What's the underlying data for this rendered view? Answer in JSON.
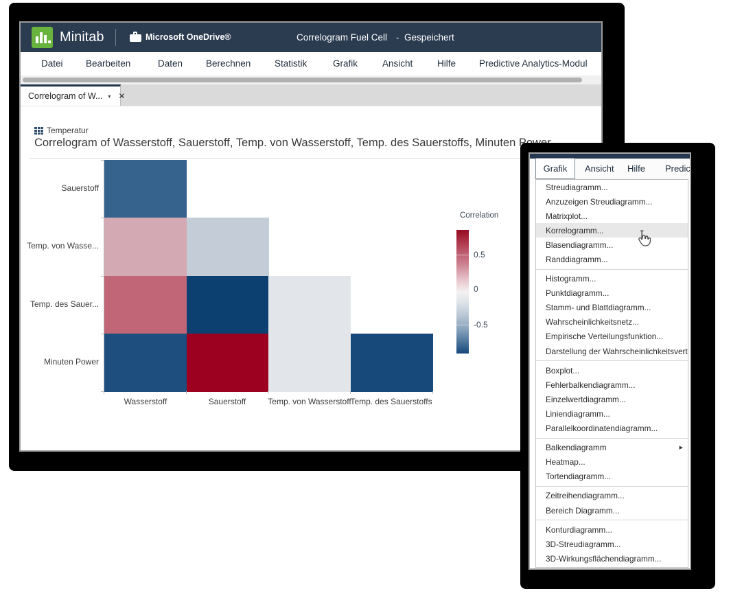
{
  "header": {
    "brand": "Minitab",
    "storage_label": "Microsoft OneDrive®",
    "doc_title": "Correlogram Fuel Cell",
    "doc_separator": "-",
    "doc_status": "Gespeichert"
  },
  "menubar": {
    "items": [
      "Datei",
      "Bearbeiten",
      "Daten",
      "Berechnen",
      "Statistik",
      "Grafik",
      "Ansicht",
      "Hilfe",
      "Predictive Analytics-Modul"
    ]
  },
  "tab": {
    "label": "Correlogram of W...",
    "caret": "▾",
    "close": "✕"
  },
  "worksheet": {
    "name": "Temperatur"
  },
  "page_title": "Correlogram of Wasserstoff, Sauerstoff, Temp. von Wasserstoff, Temp. des Sauerstoffs, Minuten Power",
  "chart_data": {
    "type": "heatmap",
    "title": "Correlogram of Wasserstoff, Sauerstoff, Temp. von Wasserstoff, Temp. des Sauerstoffs, Minuten Power",
    "x_categories": [
      "Wasserstoff",
      "Sauerstoff",
      "Temp. von Wasserstoff",
      "Temp. des Sauerstoffs"
    ],
    "y_categories": [
      "Sauerstoff",
      "Temp. von Wasse...",
      "Temp. des Sauer...",
      "Minuten Power"
    ],
    "legend": {
      "title": "Correlation",
      "ticks": [
        "0.5",
        "0",
        "-0.5"
      ],
      "top_color": "#970a20",
      "mid_color": "#f4f1f2",
      "bottom_color": "#16477a"
    },
    "cells": [
      {
        "row": 0,
        "col": 0,
        "y": "Sauerstoff",
        "x": "Wasserstoff",
        "value": -0.6,
        "color": "#35638d"
      },
      {
        "row": 1,
        "col": 0,
        "y": "Temp. von Wasse...",
        "x": "Wasserstoff",
        "value": 0.3,
        "color": "#d3a9b4"
      },
      {
        "row": 1,
        "col": 1,
        "y": "Temp. von Wasse...",
        "x": "Sauerstoff",
        "value": -0.2,
        "color": "#c4cdd7"
      },
      {
        "row": 2,
        "col": 0,
        "y": "Temp. des Sauer...",
        "x": "Wasserstoff",
        "value": 0.55,
        "color": "#c06677"
      },
      {
        "row": 2,
        "col": 1,
        "y": "Temp. des Sauer...",
        "x": "Sauerstoff",
        "value": -0.9,
        "color": "#0c4070"
      },
      {
        "row": 2,
        "col": 2,
        "y": "Temp. des Sauer...",
        "x": "Temp. von Wasserstoff",
        "value": -0.05,
        "color": "#e2e6ea"
      },
      {
        "row": 3,
        "col": 0,
        "y": "Minuten Power",
        "x": "Wasserstoff",
        "value": -0.75,
        "color": "#1d4e7d"
      },
      {
        "row": 3,
        "col": 1,
        "y": "Minuten Power",
        "x": "Sauerstoff",
        "value": 0.95,
        "color": "#9c0120"
      },
      {
        "row": 3,
        "col": 2,
        "y": "Minuten Power",
        "x": "Temp. von Wasserstoff",
        "value": -0.05,
        "color": "#e2e6ea"
      },
      {
        "row": 3,
        "col": 3,
        "y": "Minuten Power",
        "x": "Temp. des Sauerstoffs",
        "value": -0.8,
        "color": "#174a7b"
      }
    ]
  },
  "overlay_menu": {
    "menubar_items": [
      "Grafik",
      "Ansicht",
      "Hilfe",
      "Predictiv"
    ],
    "active_menu": "Grafik",
    "groups": [
      [
        {
          "label": "Streudiagramm..."
        },
        {
          "label": "Anzuzeigen Streudiagramm..."
        },
        {
          "label": "Matrixplot..."
        },
        {
          "label": "Korrelogramm...",
          "highlighted": true
        },
        {
          "label": "Blasendiagramm..."
        },
        {
          "label": "Randdiagramm..."
        }
      ],
      [
        {
          "label": "Histogramm..."
        },
        {
          "label": "Punktdiagramm..."
        },
        {
          "label": "Stamm- und Blattdiagramm..."
        },
        {
          "label": "Wahrscheinlichkeitsnetz..."
        },
        {
          "label": "Empirische Verteilungsfunktion..."
        },
        {
          "label": "Darstellung der Wahrscheinlichkeitsverteilung..."
        }
      ],
      [
        {
          "label": "Boxplot..."
        },
        {
          "label": "Fehlerbalkendiagramm..."
        },
        {
          "label": "Einzelwertdiagramm..."
        },
        {
          "label": "Liniendiagramm..."
        },
        {
          "label": "Parallelkoordinatendiagramm..."
        }
      ],
      [
        {
          "label": "Balkendiagramm",
          "submenu": true
        },
        {
          "label": "Heatmap..."
        },
        {
          "label": "Tortendiagramm..."
        }
      ],
      [
        {
          "label": "Zeitreihendiagramm..."
        },
        {
          "label": "Bereich Diagramm..."
        }
      ],
      [
        {
          "label": "Konturdiagramm..."
        },
        {
          "label": "3D-Streudiagramm..."
        },
        {
          "label": "3D-Wirkungsflächendiagramm..."
        }
      ]
    ],
    "submenu_arrow": "▶"
  },
  "colors": {
    "header_bg": "#2b3b50",
    "brand_green": "#68b43f",
    "tab_accent": "#1d3349",
    "highlight_row": "#e8e8e8"
  }
}
